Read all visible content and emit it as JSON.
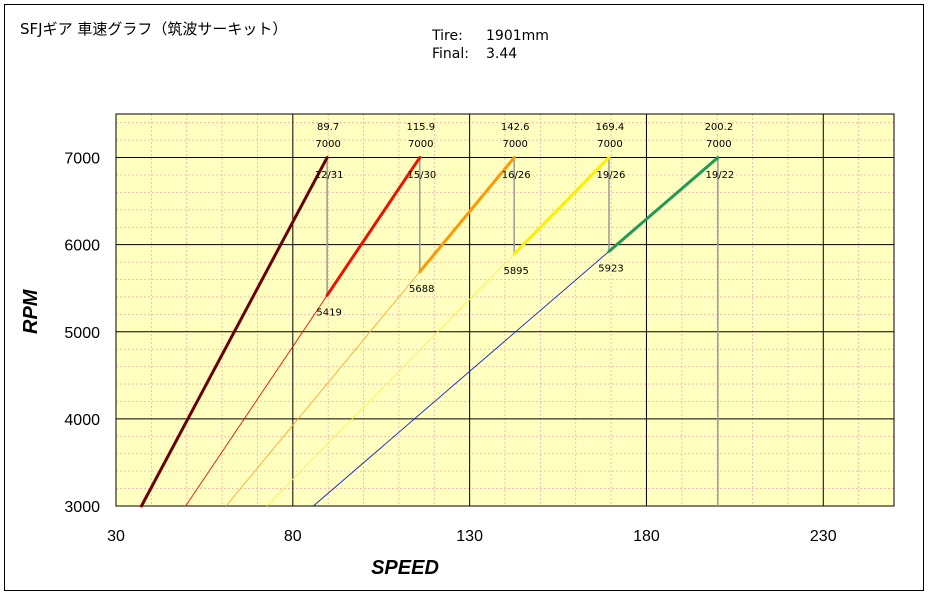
{
  "chart_data": {
    "type": "line",
    "title": "SFJギア 車速グラフ（筑波サーキット）",
    "info": [
      {
        "label": "Tire:",
        "value": "1901mm"
      },
      {
        "label": "Final:",
        "value": "3.44"
      }
    ],
    "xlabel": "SPEED",
    "ylabel": "RPM",
    "xlim": [
      30,
      250
    ],
    "ylim": [
      3000,
      7500
    ],
    "xticks": [
      30,
      80,
      130,
      180,
      230
    ],
    "yticks": [
      3000,
      4000,
      5000,
      6000,
      7000
    ],
    "grid": true,
    "series": [
      {
        "name": "12/31",
        "color": "#6b0000",
        "thin": [
          [
            37.2,
            3000
          ],
          [
            89.7,
            7000
          ]
        ],
        "thick": [
          [
            37.2,
            3000
          ],
          [
            89.7,
            7000
          ]
        ]
      },
      {
        "name": "15/30",
        "color": "#ee1100",
        "thin": [
          [
            49.7,
            3000
          ],
          [
            115.9,
            7000
          ]
        ],
        "thick": [
          [
            89.7,
            5419
          ],
          [
            115.9,
            7000
          ]
        ]
      },
      {
        "name": "16/26",
        "color": "#ff9900",
        "thin": [
          [
            61.1,
            3000
          ],
          [
            142.6,
            7000
          ]
        ],
        "thick": [
          [
            115.9,
            5688
          ],
          [
            142.6,
            7000
          ]
        ]
      },
      {
        "name": "19/26",
        "color": "#ffee00",
        "thin": [
          [
            72.6,
            3000
          ],
          [
            169.4,
            7000
          ]
        ],
        "thick": [
          [
            142.6,
            5895
          ],
          [
            169.4,
            7000
          ]
        ]
      },
      {
        "name": "19/22",
        "color": "#229955",
        "thin": [
          [
            85.8,
            3000
          ],
          [
            200.2,
            7000
          ]
        ],
        "thick": [
          [
            169.4,
            5923
          ],
          [
            200.2,
            7000
          ]
        ]
      }
    ],
    "thin_colors": [
      "#ee1100",
      "#ffaa33",
      "#ffee55",
      "#1122cc",
      "#1122cc"
    ],
    "shift_points": [
      {
        "speed": 89.7,
        "rpm_top": 7000,
        "ratio": "12/31",
        "drop_rpm": 5419,
        "speed_label": "89.7",
        "rpm_label": "7000",
        "drop_label": "5419"
      },
      {
        "speed": 115.9,
        "rpm_top": 7000,
        "ratio": "15/30",
        "drop_rpm": 5688,
        "speed_label": "115.9",
        "rpm_label": "7000",
        "drop_label": "5688"
      },
      {
        "speed": 142.6,
        "rpm_top": 7000,
        "ratio": "16/26",
        "drop_rpm": 5895,
        "speed_label": "142.6",
        "rpm_label": "7000",
        "drop_label": "5895"
      },
      {
        "speed": 169.4,
        "rpm_top": 7000,
        "ratio": "19/26",
        "drop_rpm": 5923,
        "speed_label": "169.4",
        "rpm_label": "7000",
        "drop_label": "5923"
      },
      {
        "speed": 200.2,
        "rpm_top": 7000,
        "ratio": "19/22",
        "drop_rpm": null,
        "speed_label": "200.2",
        "rpm_label": "7000",
        "drop_label": ""
      }
    ],
    "colors": {
      "plot_bg": "#ffffc0",
      "grid_major": "#000000",
      "grid_minor": "#f3b0b0",
      "shift_line": "#999999"
    }
  }
}
